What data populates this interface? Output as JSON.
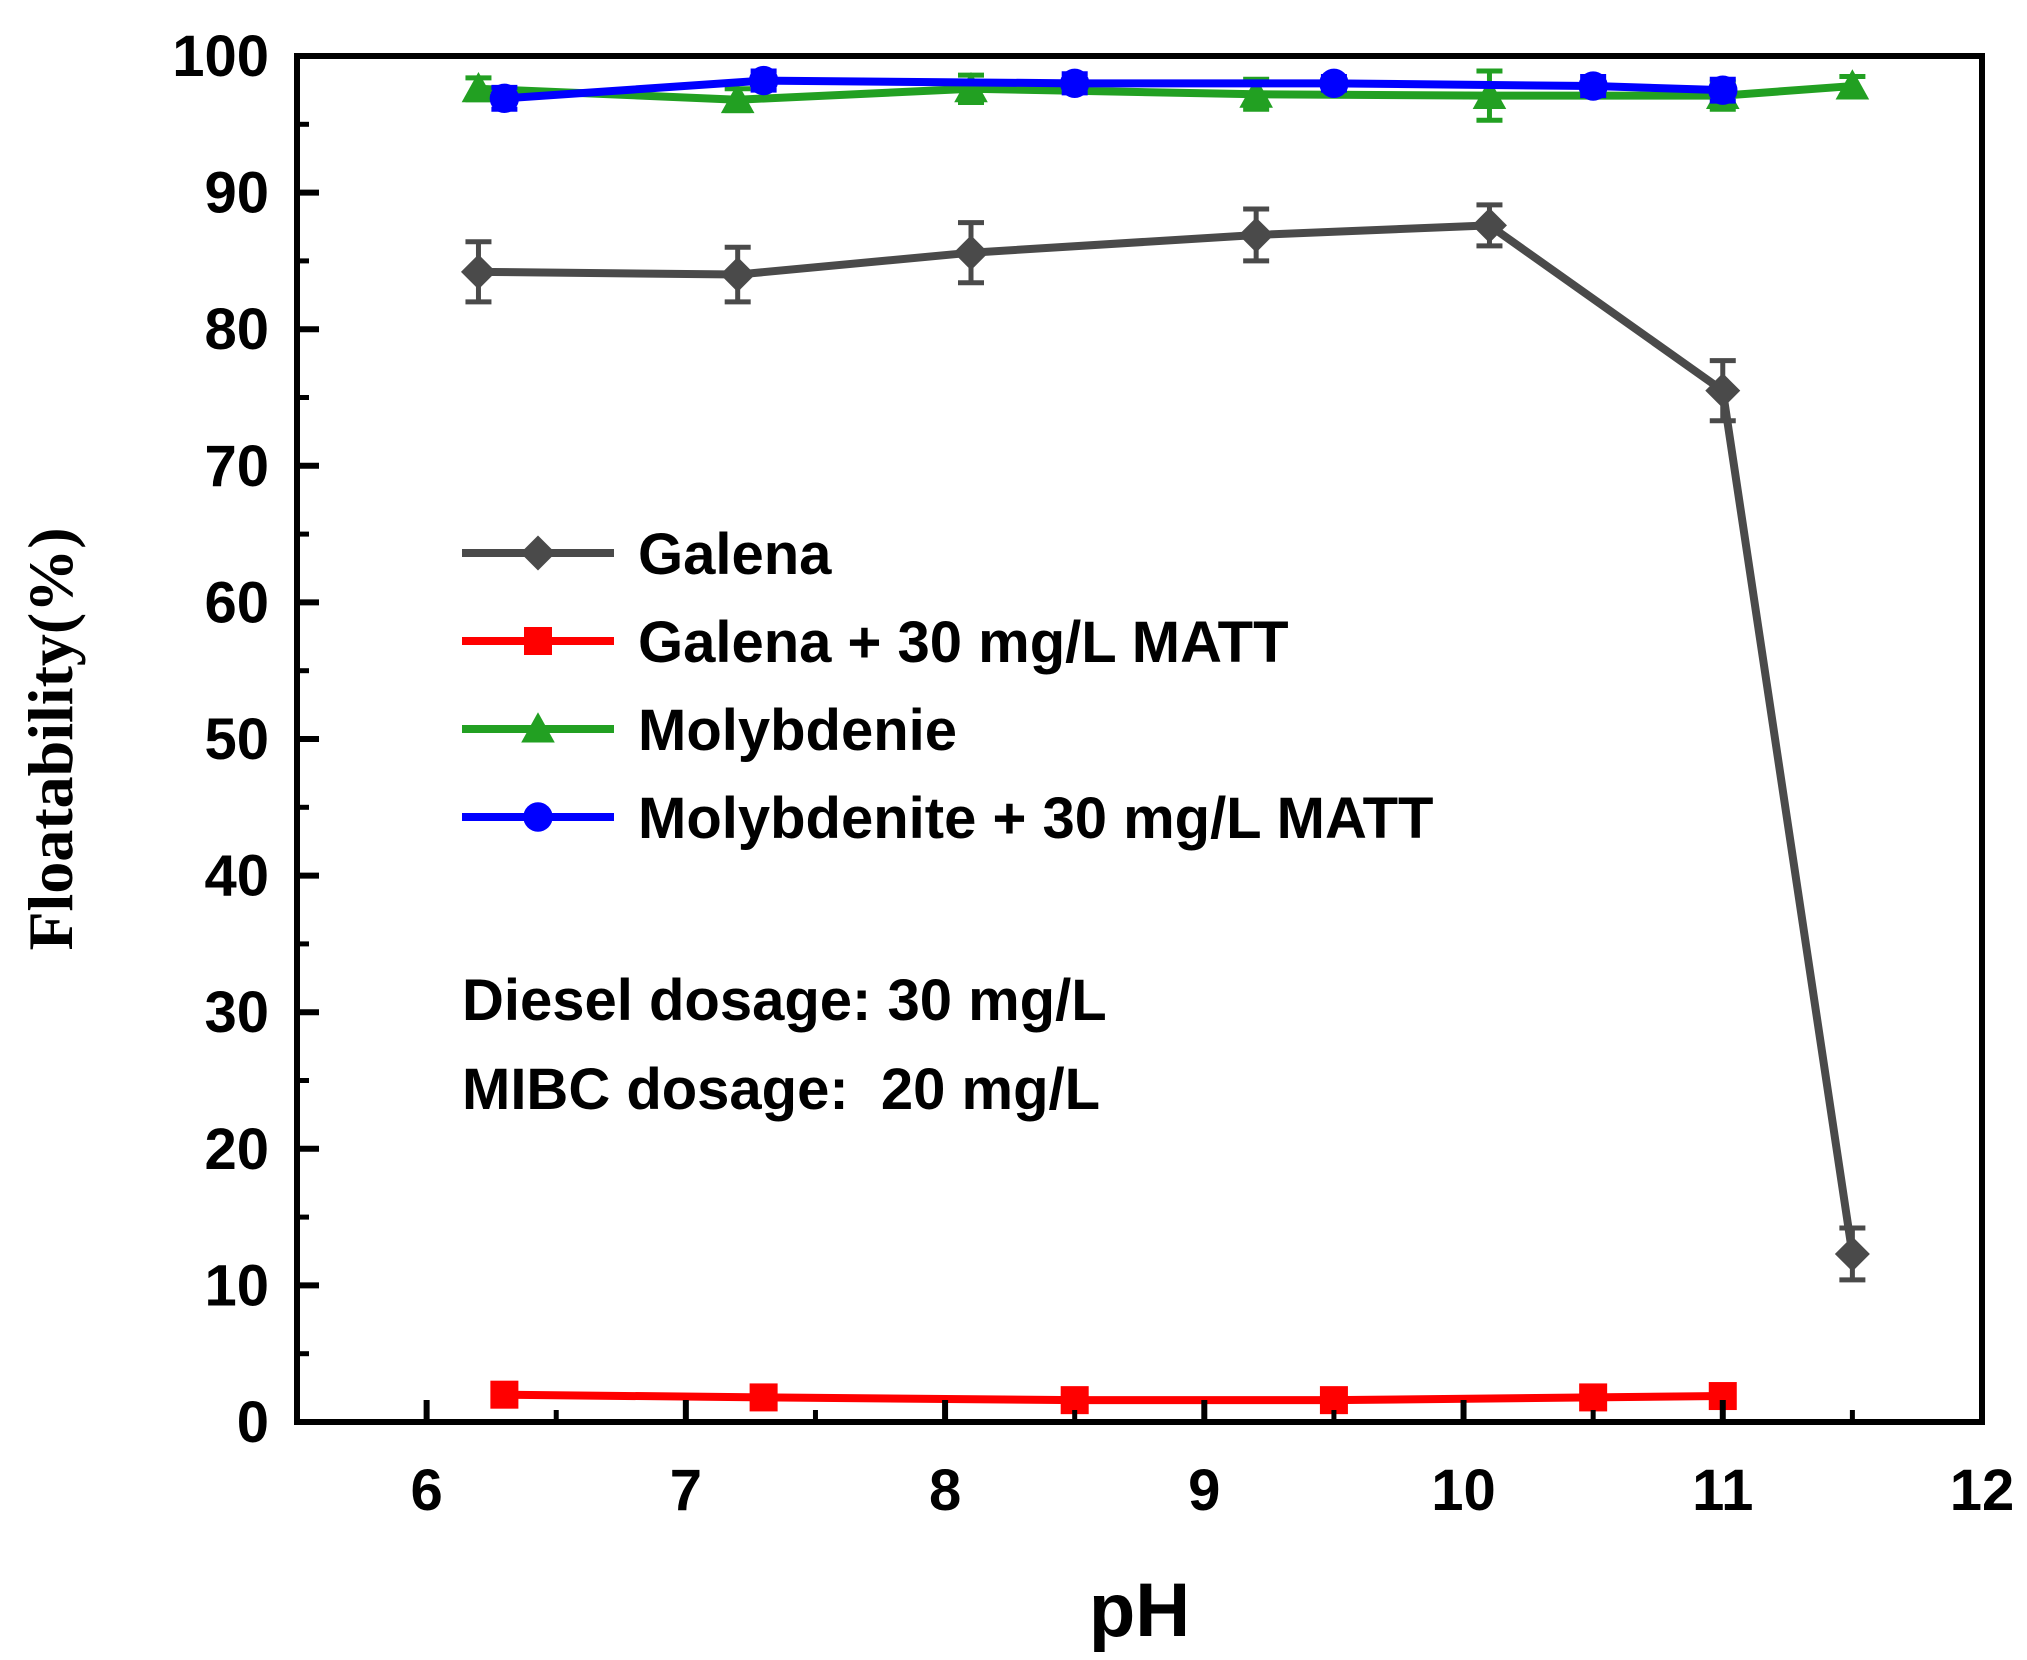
{
  "chart_data": {
    "type": "line",
    "title": "",
    "xlabel": "pH",
    "ylabel": "Floatability(%)",
    "xlim": [
      5.5,
      12
    ],
    "ylim": [
      0,
      100
    ],
    "xticks": [
      6,
      7,
      8,
      9,
      10,
      11,
      12
    ],
    "yticks": [
      0,
      10,
      20,
      30,
      40,
      50,
      60,
      70,
      80,
      90,
      100
    ],
    "grid": false,
    "legend_position": "middle-left",
    "series": [
      {
        "name": "Galena",
        "color": "#4a4a4a",
        "marker": "diamond",
        "x": [
          6.2,
          7.2,
          8.1,
          9.2,
          10.1,
          11.0,
          11.5
        ],
        "y": [
          84.2,
          84.0,
          85.6,
          86.9,
          87.6,
          75.5,
          12.3
        ],
        "err": [
          2.2,
          2.0,
          2.2,
          1.9,
          1.5,
          2.2,
          1.9
        ]
      },
      {
        "name": "Galena + 30 mg/L MATT",
        "color": "#ff0000",
        "marker": "square",
        "x": [
          6.3,
          7.3,
          8.5,
          9.5,
          10.5,
          11.0
        ],
        "y": [
          2.0,
          1.8,
          1.6,
          1.6,
          1.8,
          1.9
        ],
        "err": [
          0.4,
          0.4,
          0.4,
          0.4,
          0.4,
          0.4
        ]
      },
      {
        "name": "Molybdenie",
        "color": "#22a022",
        "marker": "triangle",
        "x": [
          6.2,
          7.2,
          8.1,
          9.2,
          10.1,
          11.0,
          11.5
        ],
        "y": [
          97.6,
          96.8,
          97.6,
          97.2,
          97.1,
          97.1,
          97.8
        ],
        "err": [
          0.8,
          0.8,
          1.0,
          1.1,
          1.8,
          1.0,
          0.7
        ]
      },
      {
        "name": "Molybdenite + 30 mg/L MATT",
        "color": "#0000ff",
        "marker": "circle",
        "x": [
          6.3,
          7.3,
          8.5,
          9.5,
          10.5,
          11.0
        ],
        "y": [
          96.9,
          98.2,
          98.0,
          98.0,
          97.8,
          97.5
        ],
        "err": [
          0.8,
          0.7,
          0.7,
          0.5,
          0.7,
          0.8
        ]
      }
    ],
    "annotations": [
      "Diesel dosage: 30 mg/L",
      "MIBC dosage:  20 mg/L"
    ]
  }
}
